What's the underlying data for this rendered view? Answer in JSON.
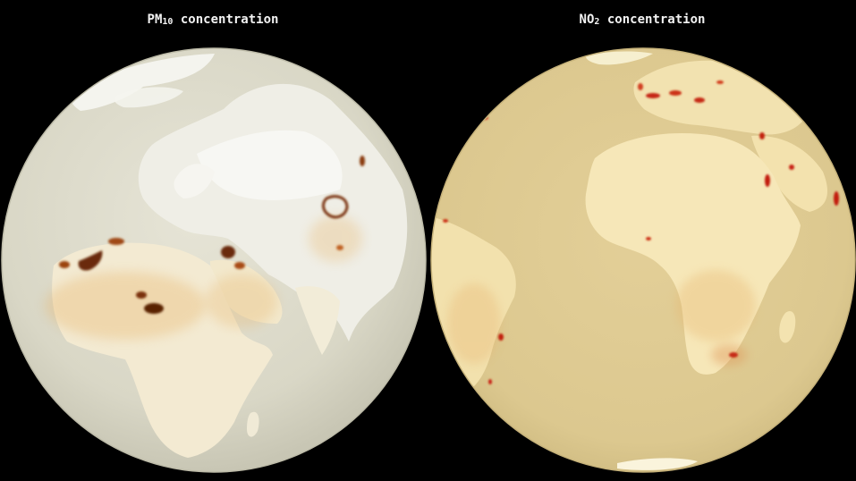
{
  "panels": {
    "left": {
      "title_main": "PM",
      "title_sub": "10",
      "title_rest": " concentration",
      "ocean_color": "#dddbcc",
      "land_color": "#f3ecd6",
      "hotspot_color": "#6b2a08"
    },
    "right": {
      "title_main": "NO",
      "title_sub": "2",
      "title_rest": " concentration",
      "ocean_color": "#e2cf98",
      "land_color": "#f4e4b4",
      "hotspot_color": "#c21a10"
    }
  }
}
